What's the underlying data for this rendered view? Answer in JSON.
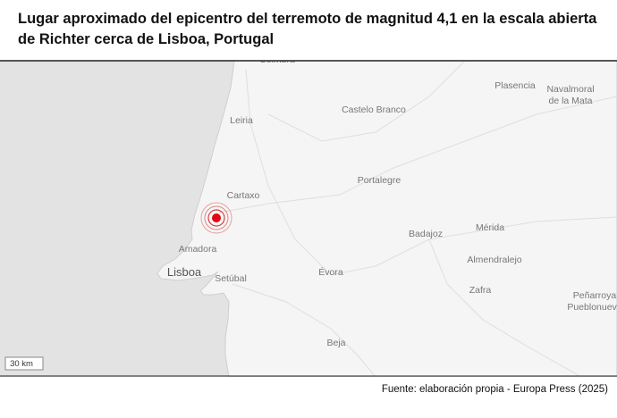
{
  "header": {
    "title": "Lugar aproximado del epicentro del terremoto de magnitud 4,1 en la escala abierta de Richter cerca de Lisboa, Portugal"
  },
  "map": {
    "places": [
      {
        "lines": [
          "Coimbra"
        ]
      },
      {
        "lines": [
          "Plasencia"
        ]
      },
      {
        "lines": [
          "Navalmoral",
          "de la Mata"
        ]
      },
      {
        "lines": [
          "Castelo Branco"
        ]
      },
      {
        "lines": [
          "Leiria"
        ]
      },
      {
        "lines": [
          "Portalegre"
        ]
      },
      {
        "lines": [
          "Cartaxo"
        ]
      },
      {
        "lines": [
          "Badajoz"
        ]
      },
      {
        "lines": [
          "Mérida"
        ]
      },
      {
        "lines": [
          "Amadora"
        ]
      },
      {
        "lines": [
          "Almendralejo"
        ]
      },
      {
        "lines": [
          "Lisboa"
        ]
      },
      {
        "lines": [
          "Setúbal"
        ]
      },
      {
        "lines": [
          "Évora"
        ]
      },
      {
        "lines": [
          "Zafra"
        ]
      },
      {
        "lines": [
          "Peñarroya",
          "Pueblonuevo"
        ]
      },
      {
        "lines": [
          "Beja"
        ]
      }
    ],
    "scale": "30 km"
  },
  "footer": {
    "source": "Fuente: elaboración propia - Europa Press (2025)"
  }
}
